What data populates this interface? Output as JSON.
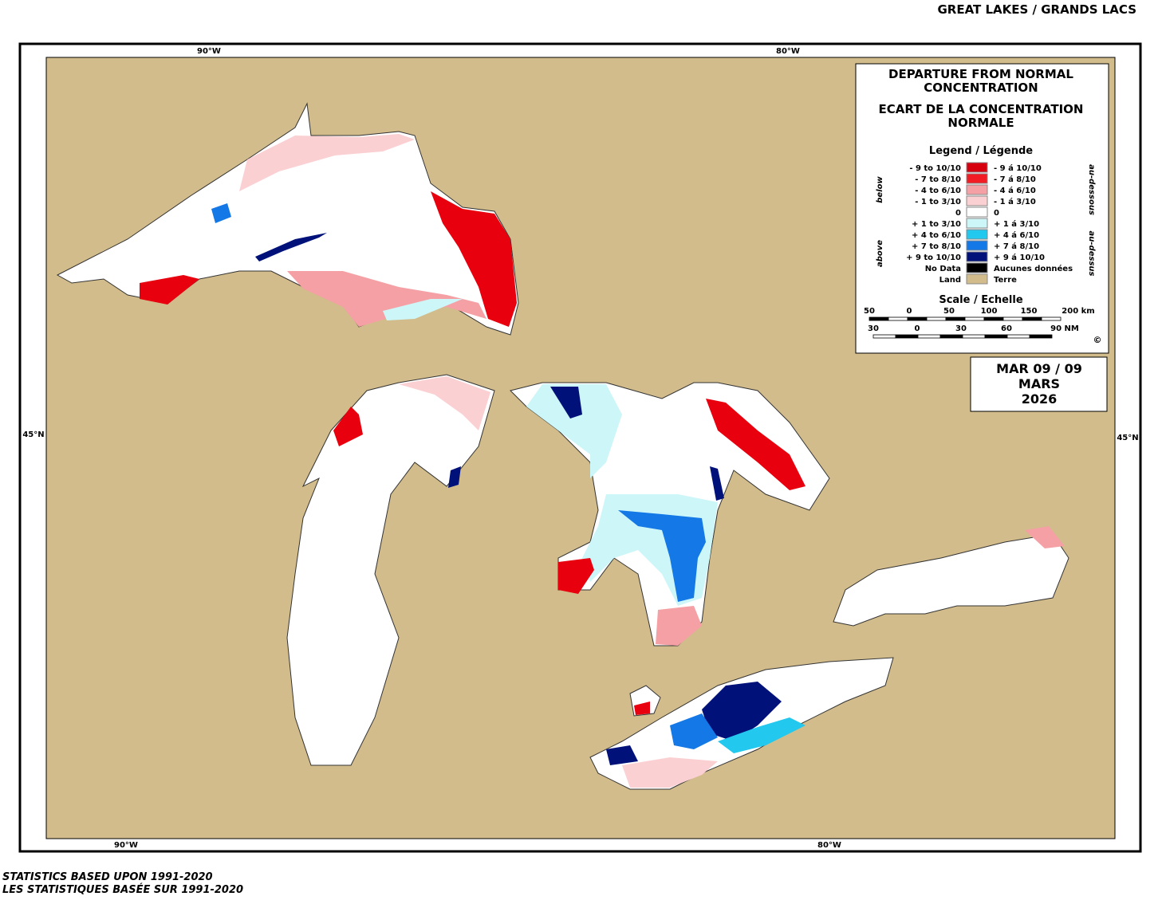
{
  "header": {
    "title": "GREAT LAKES / GRANDS LACS"
  },
  "map": {
    "graticule": {
      "top": [
        "90°W",
        "80°W"
      ],
      "bottom": [
        "90°W",
        "80°W"
      ],
      "left": [
        "45°N"
      ],
      "right": [
        "45°N"
      ]
    }
  },
  "legend": {
    "title_en": [
      "DEPARTURE FROM NORMAL",
      "CONCENTRATION"
    ],
    "title_fr": [
      "ECART DE LA CONCENTRATION",
      "NORMALE"
    ],
    "heading": "Legend / Légende",
    "below": "below",
    "above": "above",
    "below_fr": "au-dessous",
    "above_fr": "au-dessus",
    "items": [
      {
        "en": "- 9 to 10/10",
        "fr": "- 9 á 10/10",
        "color": "#d7000f"
      },
      {
        "en": "- 7 to 8/10",
        "fr": "- 7 á 8/10",
        "color": "#f21c24"
      },
      {
        "en": "- 4 to 6/10",
        "fr": "- 4 á 6/10",
        "color": "#f4a0a4"
      },
      {
        "en": "- 1 to 3/10",
        "fr": "- 1 á 3/10",
        "color": "#fbd0d2"
      },
      {
        "en": "0",
        "fr": "0",
        "color": "#ffffff"
      },
      {
        "en": "+ 1 to 3/10",
        "fr": "+ 1 á 3/10",
        "color": "#cdf6f8"
      },
      {
        "en": "+ 4 to 6/10",
        "fr": "+ 4 á 6/10",
        "color": "#22c8ee"
      },
      {
        "en": "+ 7 to 8/10",
        "fr": "+ 7 á 8/10",
        "color": "#1478e6"
      },
      {
        "en": "+ 9 to 10/10",
        "fr": "+ 9 á 10/10",
        "color": "#00127a"
      },
      {
        "en": "No Data",
        "fr": "Aucunes données",
        "color": "#000000"
      },
      {
        "en": "Land",
        "fr": "Terre",
        "color": "#d2bc8c"
      }
    ],
    "scale_title": "Scale / Echelle",
    "km_ticks": [
      "50",
      "0",
      "50",
      "100",
      "150",
      "200 km"
    ],
    "nm_ticks": [
      "30",
      "0",
      "30",
      "60",
      "90 NM"
    ],
    "copyright": "©"
  },
  "date": {
    "lines": [
      "MAR 09 / 09",
      "MARS",
      "2026"
    ]
  },
  "footer": {
    "lines": [
      "STATISTICS BASED UPON 1991-2020",
      "LES STATISTIQUES BASÉE SUR 1991-2020"
    ]
  }
}
